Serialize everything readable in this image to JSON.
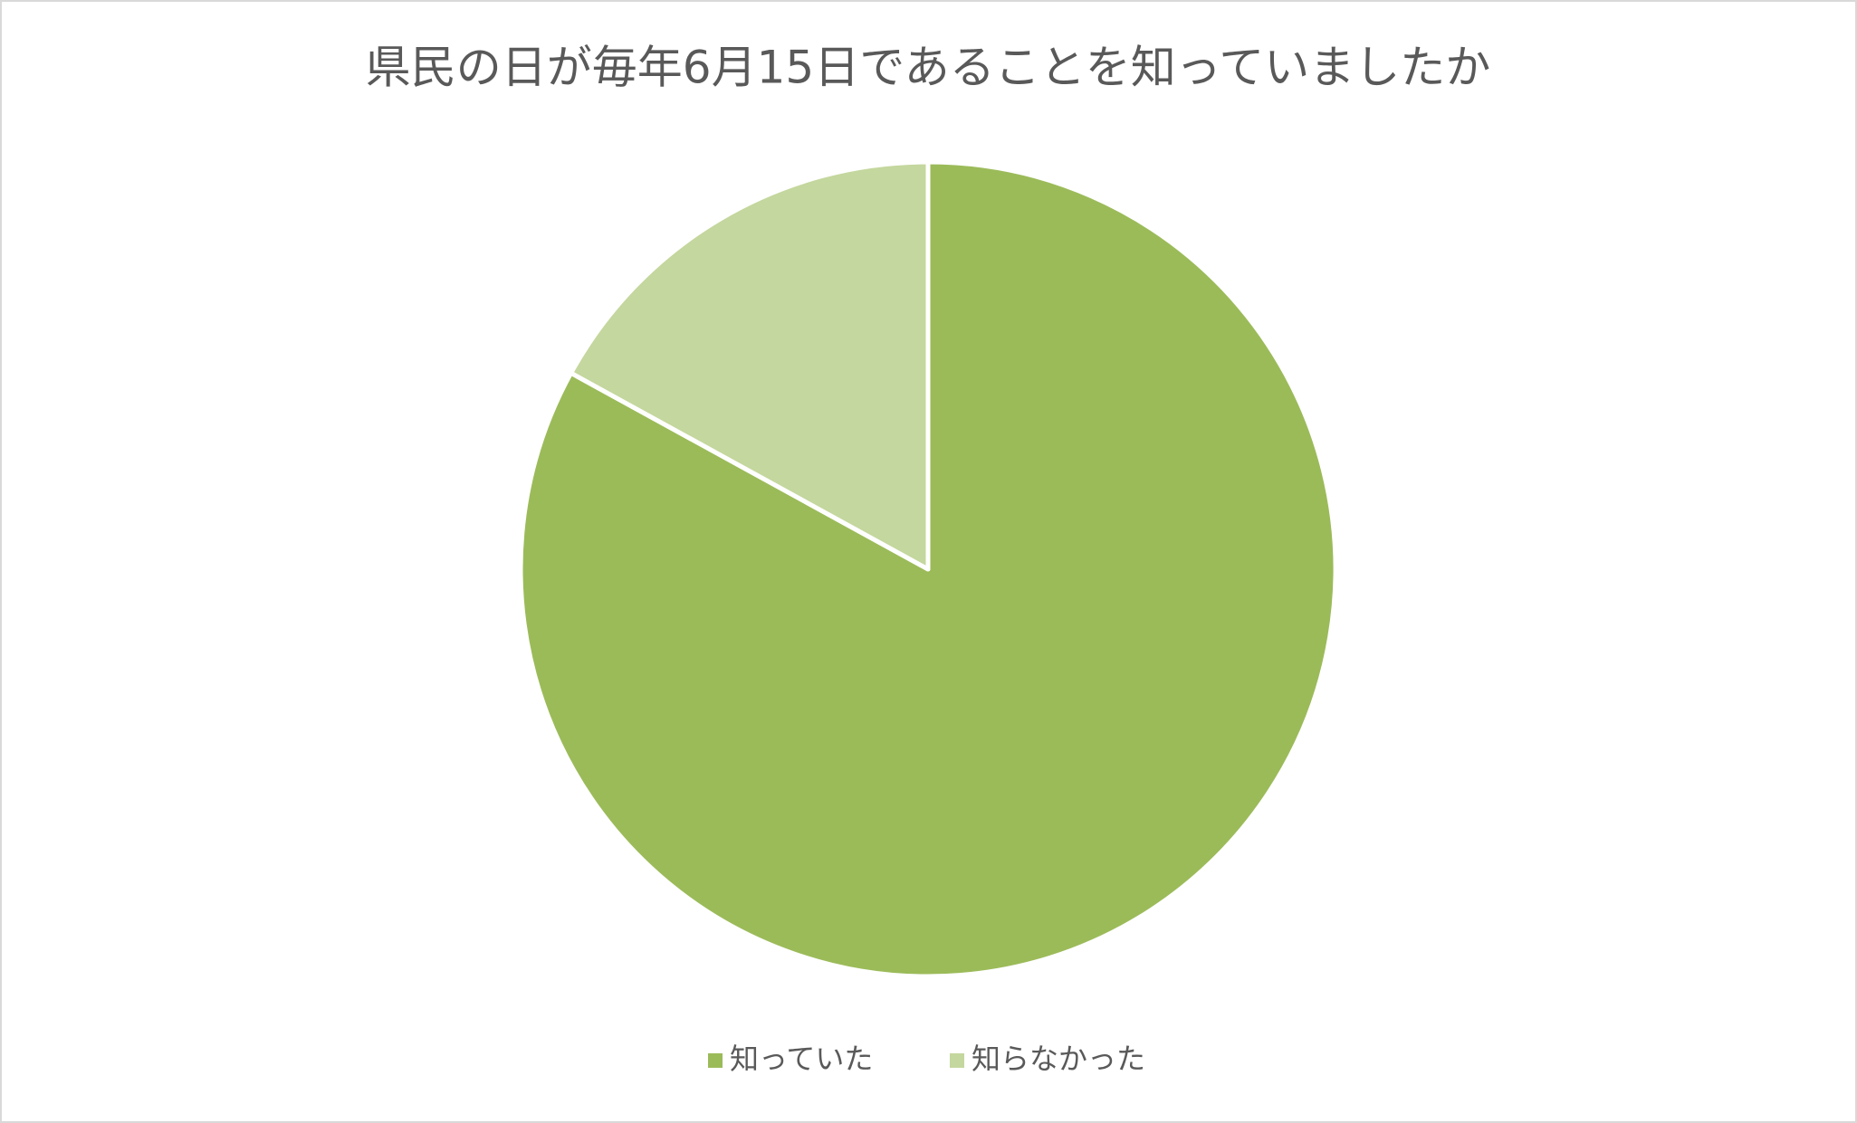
{
  "chart_data": {
    "type": "pie",
    "title": "県民の日が毎年6月15日であることを知っていましたか",
    "categories": [
      "知っていた",
      "知らなかった"
    ],
    "values": [
      83,
      17
    ],
    "colors": [
      "#9bbb59",
      "#c4d79e"
    ],
    "legend": "bottom"
  }
}
